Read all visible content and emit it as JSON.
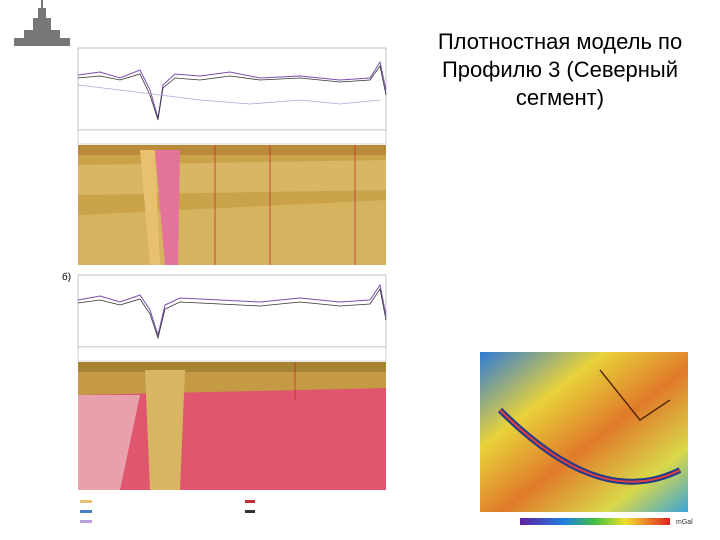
{
  "title_lines": [
    "Плотностная модель по",
    "Профилю 3 (Северный",
    "сегмент)"
  ],
  "figure": {
    "panel_b_label": "б)",
    "map_unit": "mGal"
  }
}
